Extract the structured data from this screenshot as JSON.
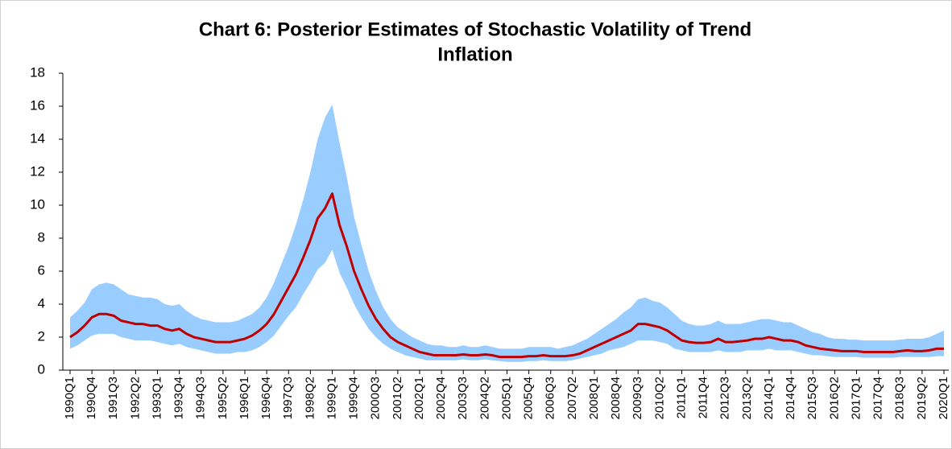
{
  "chart_data": {
    "type": "line_band",
    "title": [
      "Chart 6: Posterior Estimates of Stochastic Volatility of Trend",
      "Inflation"
    ],
    "categories": [
      "1990Q1",
      null,
      null,
      "1990Q4",
      null,
      null,
      "1991Q3",
      null,
      null,
      "1992Q2",
      null,
      null,
      "1993Q1",
      null,
      null,
      "1993Q4",
      null,
      null,
      "1994Q3",
      null,
      null,
      "1995Q2",
      null,
      null,
      "1996Q1",
      null,
      null,
      "1996Q4",
      null,
      null,
      "1997Q3",
      null,
      null,
      "1998Q2",
      null,
      null,
      "1999Q1",
      null,
      null,
      "1999Q4",
      null,
      null,
      "2000Q3",
      null,
      null,
      "2001Q2",
      null,
      null,
      "2002Q1",
      null,
      null,
      "2002Q4",
      null,
      null,
      "2003Q3",
      null,
      null,
      "2004Q2",
      null,
      null,
      "2005Q1",
      null,
      null,
      "2005Q4",
      null,
      null,
      "2006Q3",
      null,
      null,
      "2007Q2",
      null,
      null,
      "2008Q1",
      null,
      null,
      "2008Q4",
      null,
      null,
      "2009Q3",
      null,
      null,
      "2010Q2",
      null,
      null,
      "2011Q1",
      null,
      null,
      "2011Q4",
      null,
      null,
      "2012Q3",
      null,
      null,
      "2013Q2",
      null,
      null,
      "2014Q1",
      null,
      null,
      "2014Q4",
      null,
      null,
      "2015Q3",
      null,
      null,
      "2016Q2",
      null,
      null,
      "2017Q1",
      null,
      null,
      "2017Q4",
      null,
      null,
      "2018Q3",
      null,
      null,
      "2019Q2",
      null,
      null,
      "2020Q1"
    ],
    "series": [
      {
        "color": "#c00000",
        "values": [
          2.0,
          2.3,
          2.7,
          3.2,
          3.4,
          3.4,
          3.3,
          3.0,
          2.9,
          2.8,
          2.8,
          2.7,
          2.7,
          2.5,
          2.4,
          2.5,
          2.2,
          2.0,
          1.9,
          1.8,
          1.7,
          1.7,
          1.7,
          1.8,
          1.9,
          2.1,
          2.4,
          2.8,
          3.4,
          4.2,
          5.0,
          5.8,
          6.8,
          7.9,
          9.2,
          9.8,
          10.7,
          8.8,
          7.5,
          6.0,
          4.9,
          3.9,
          3.1,
          2.5,
          2.0,
          1.7,
          1.5,
          1.3,
          1.1,
          1.0,
          0.9,
          0.9,
          0.9,
          0.9,
          0.95,
          0.9,
          0.9,
          0.95,
          0.9,
          0.8,
          0.8,
          0.8,
          0.8,
          0.85,
          0.85,
          0.9,
          0.85,
          0.85,
          0.85,
          0.9,
          1.0,
          1.2,
          1.4,
          1.6,
          1.8,
          2.0,
          2.2,
          2.4,
          2.8,
          2.8,
          2.7,
          2.6,
          2.4,
          2.1,
          1.8,
          1.7,
          1.65,
          1.65,
          1.7,
          1.9,
          1.7,
          1.7,
          1.75,
          1.8,
          1.9,
          1.9,
          2.0,
          1.9,
          1.8,
          1.8,
          1.7,
          1.5,
          1.4,
          1.3,
          1.25,
          1.2,
          1.15,
          1.15,
          1.15,
          1.1,
          1.1,
          1.1,
          1.1,
          1.1,
          1.15,
          1.2,
          1.15,
          1.15,
          1.2,
          1.3,
          1.3
        ]
      }
    ],
    "band": {
      "color": "#99ccff",
      "lower": [
        1.3,
        1.5,
        1.8,
        2.1,
        2.2,
        2.2,
        2.2,
        2.0,
        1.9,
        1.8,
        1.8,
        1.8,
        1.7,
        1.6,
        1.5,
        1.6,
        1.4,
        1.3,
        1.2,
        1.1,
        1.0,
        1.0,
        1.0,
        1.1,
        1.1,
        1.2,
        1.4,
        1.7,
        2.1,
        2.7,
        3.3,
        3.8,
        4.6,
        5.3,
        6.1,
        6.5,
        7.3,
        5.9,
        5.0,
        4.0,
        3.2,
        2.5,
        2.0,
        1.6,
        1.3,
        1.1,
        0.9,
        0.8,
        0.7,
        0.6,
        0.6,
        0.6,
        0.6,
        0.6,
        0.65,
        0.6,
        0.6,
        0.65,
        0.6,
        0.55,
        0.5,
        0.5,
        0.5,
        0.55,
        0.55,
        0.6,
        0.55,
        0.55,
        0.55,
        0.6,
        0.7,
        0.8,
        0.9,
        1.0,
        1.2,
        1.3,
        1.4,
        1.6,
        1.8,
        1.8,
        1.8,
        1.7,
        1.6,
        1.3,
        1.2,
        1.1,
        1.1,
        1.1,
        1.1,
        1.2,
        1.1,
        1.1,
        1.1,
        1.2,
        1.2,
        1.2,
        1.3,
        1.2,
        1.2,
        1.2,
        1.1,
        1.0,
        0.9,
        0.9,
        0.85,
        0.8,
        0.8,
        0.8,
        0.8,
        0.75,
        0.75,
        0.75,
        0.75,
        0.75,
        0.8,
        0.8,
        0.8,
        0.8,
        0.8,
        0.85,
        0.85
      ],
      "upper": [
        3.2,
        3.6,
        4.1,
        4.9,
        5.2,
        5.3,
        5.2,
        4.9,
        4.6,
        4.5,
        4.4,
        4.4,
        4.3,
        4.0,
        3.9,
        4.0,
        3.6,
        3.3,
        3.1,
        3.0,
        2.9,
        2.9,
        2.9,
        3.0,
        3.2,
        3.4,
        3.8,
        4.4,
        5.3,
        6.4,
        7.5,
        8.8,
        10.3,
        12.0,
        14.0,
        15.3,
        16.1,
        13.8,
        11.7,
        9.3,
        7.6,
        6.0,
        4.8,
        3.8,
        3.1,
        2.6,
        2.3,
        2.0,
        1.8,
        1.6,
        1.5,
        1.5,
        1.4,
        1.4,
        1.5,
        1.4,
        1.4,
        1.5,
        1.4,
        1.3,
        1.3,
        1.3,
        1.3,
        1.4,
        1.4,
        1.4,
        1.4,
        1.3,
        1.4,
        1.5,
        1.7,
        1.9,
        2.2,
        2.5,
        2.8,
        3.1,
        3.5,
        3.8,
        4.3,
        4.4,
        4.2,
        4.1,
        3.8,
        3.4,
        3.0,
        2.8,
        2.7,
        2.7,
        2.8,
        3.0,
        2.8,
        2.8,
        2.8,
        2.9,
        3.0,
        3.1,
        3.1,
        3.0,
        2.9,
        2.9,
        2.7,
        2.5,
        2.3,
        2.2,
        2.0,
        1.9,
        1.9,
        1.85,
        1.85,
        1.8,
        1.8,
        1.8,
        1.8,
        1.8,
        1.85,
        1.9,
        1.9,
        1.9,
        2.0,
        2.2,
        2.4
      ]
    },
    "ylim": [
      0,
      18
    ],
    "yticks": [
      0,
      2,
      4,
      6,
      8,
      10,
      12,
      14,
      16,
      18
    ],
    "grid": false
  }
}
